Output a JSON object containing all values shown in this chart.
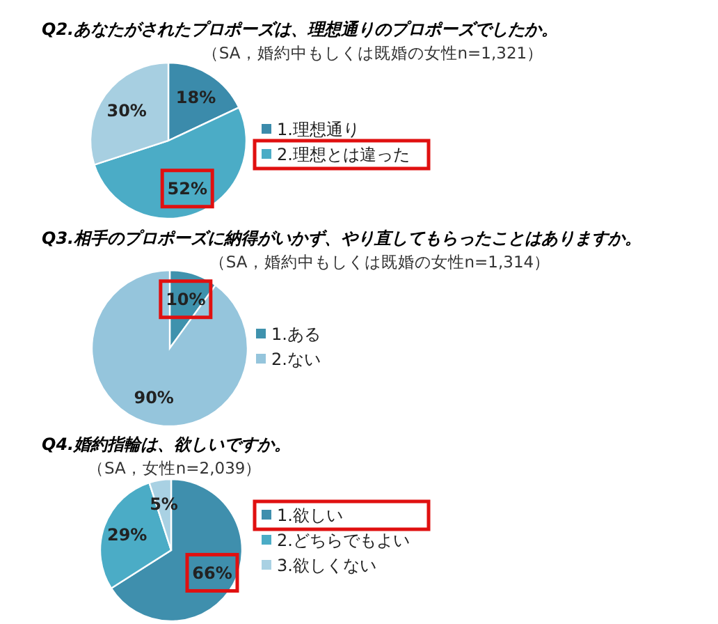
{
  "chart_data": [
    {
      "type": "pie",
      "title": "Q2.あなたがされたプロポーズは、理想通りのプロポーズでしたか。",
      "subtitle": "（SA，婚約中もしくは既婚の女性n=1,321）",
      "categories": [
        "1.理想通り",
        "2.理想とは違った",
        null
      ],
      "values": [
        18,
        52,
        30
      ],
      "value_labels": [
        "18%",
        "52%",
        "30%"
      ],
      "colors": [
        "#3b8bab",
        "#4bacc6",
        "#a7cfe1"
      ],
      "legend": "right"
    },
    {
      "type": "pie",
      "title": "Q3.相手のプロポーズに納得がいかず、やり直してもらったことはありますか。",
      "subtitle": "（SA，婚約中もしくは既婚の女性n=1,314）",
      "categories": [
        "1.ある",
        "2.ない"
      ],
      "values": [
        10,
        90
      ],
      "value_labels": [
        "10%",
        "90%"
      ],
      "colors": [
        "#3f92ad",
        "#95c5dc"
      ],
      "legend": "right"
    },
    {
      "type": "pie",
      "title": "Q4.婚約指輪は、欲しいですか。",
      "subtitle": "（SA，女性n=2,039）",
      "categories": [
        "1.欲しい",
        "2.どちらでもよい",
        "3.欲しくない"
      ],
      "values": [
        66,
        29,
        5
      ],
      "value_labels": [
        "66%",
        "29%",
        "5%"
      ],
      "colors": [
        "#3f8fad",
        "#4bacc6",
        "#a9d1e3"
      ],
      "legend": "right"
    }
  ]
}
